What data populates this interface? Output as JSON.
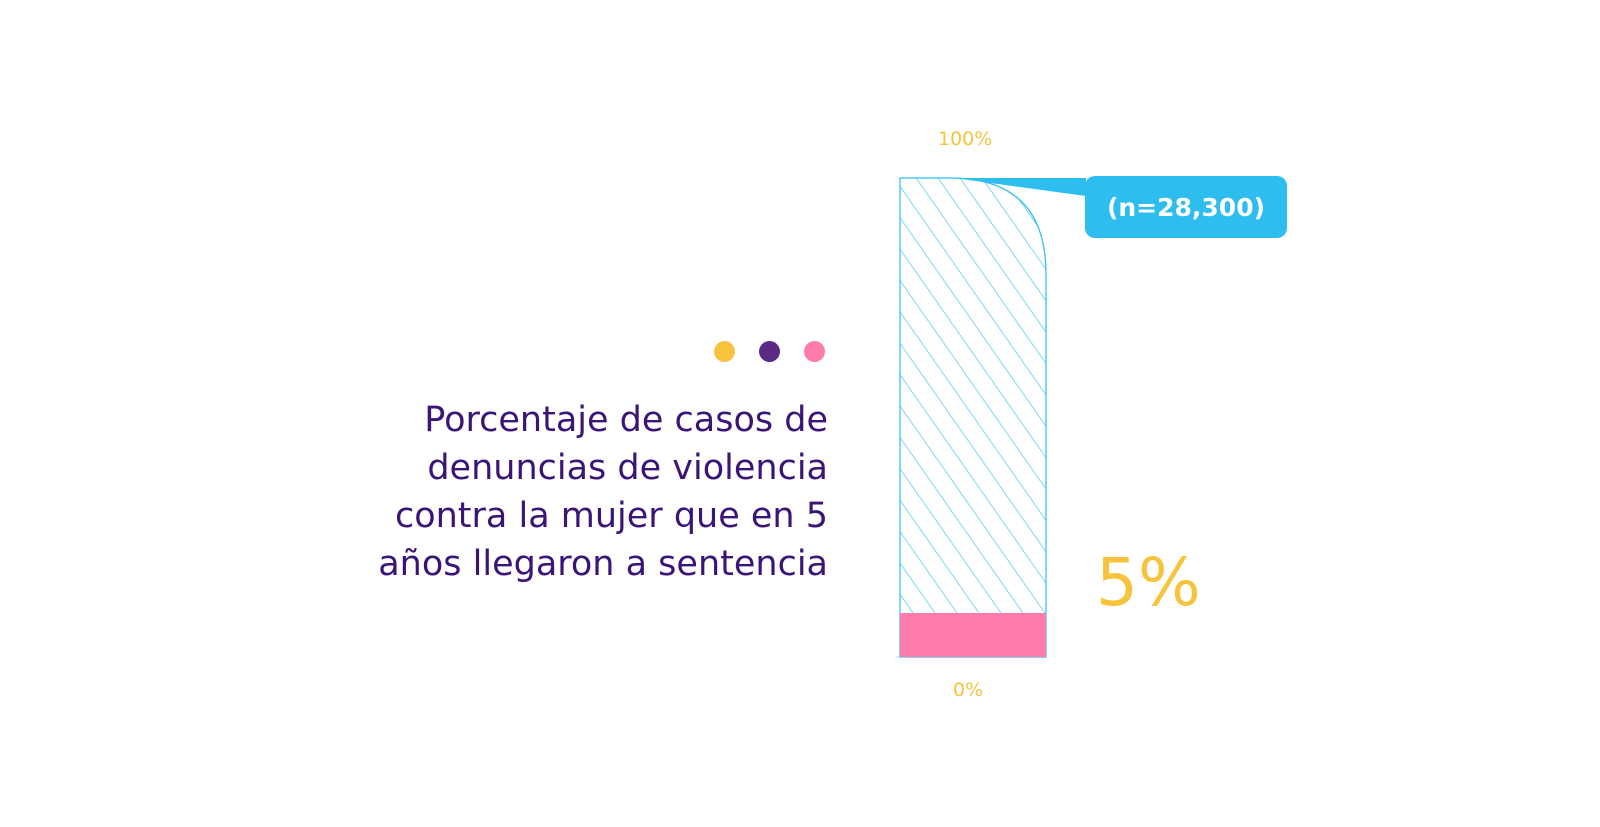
{
  "colors": {
    "title": "#3b1478",
    "accent_yellow": "#f7c33c",
    "accent_purple": "#5b2a86",
    "accent_pink": "#fe7cac",
    "bar_total": "#2dbdee"
  },
  "dots": [
    "yellow",
    "purple",
    "pink"
  ],
  "chart_data": {
    "type": "bar",
    "title_lines": [
      "Porcentaje de casos de",
      "denuncias de violencia",
      "contra la mujer que en 5",
      "años llegaron a sentencia"
    ],
    "axis_top_label": "100%",
    "axis_bottom_label": "0%",
    "ylim": [
      0,
      100
    ],
    "total": {
      "value": 100,
      "label": "(n=28,300)"
    },
    "part": {
      "value": 5,
      "label": "5%"
    }
  }
}
